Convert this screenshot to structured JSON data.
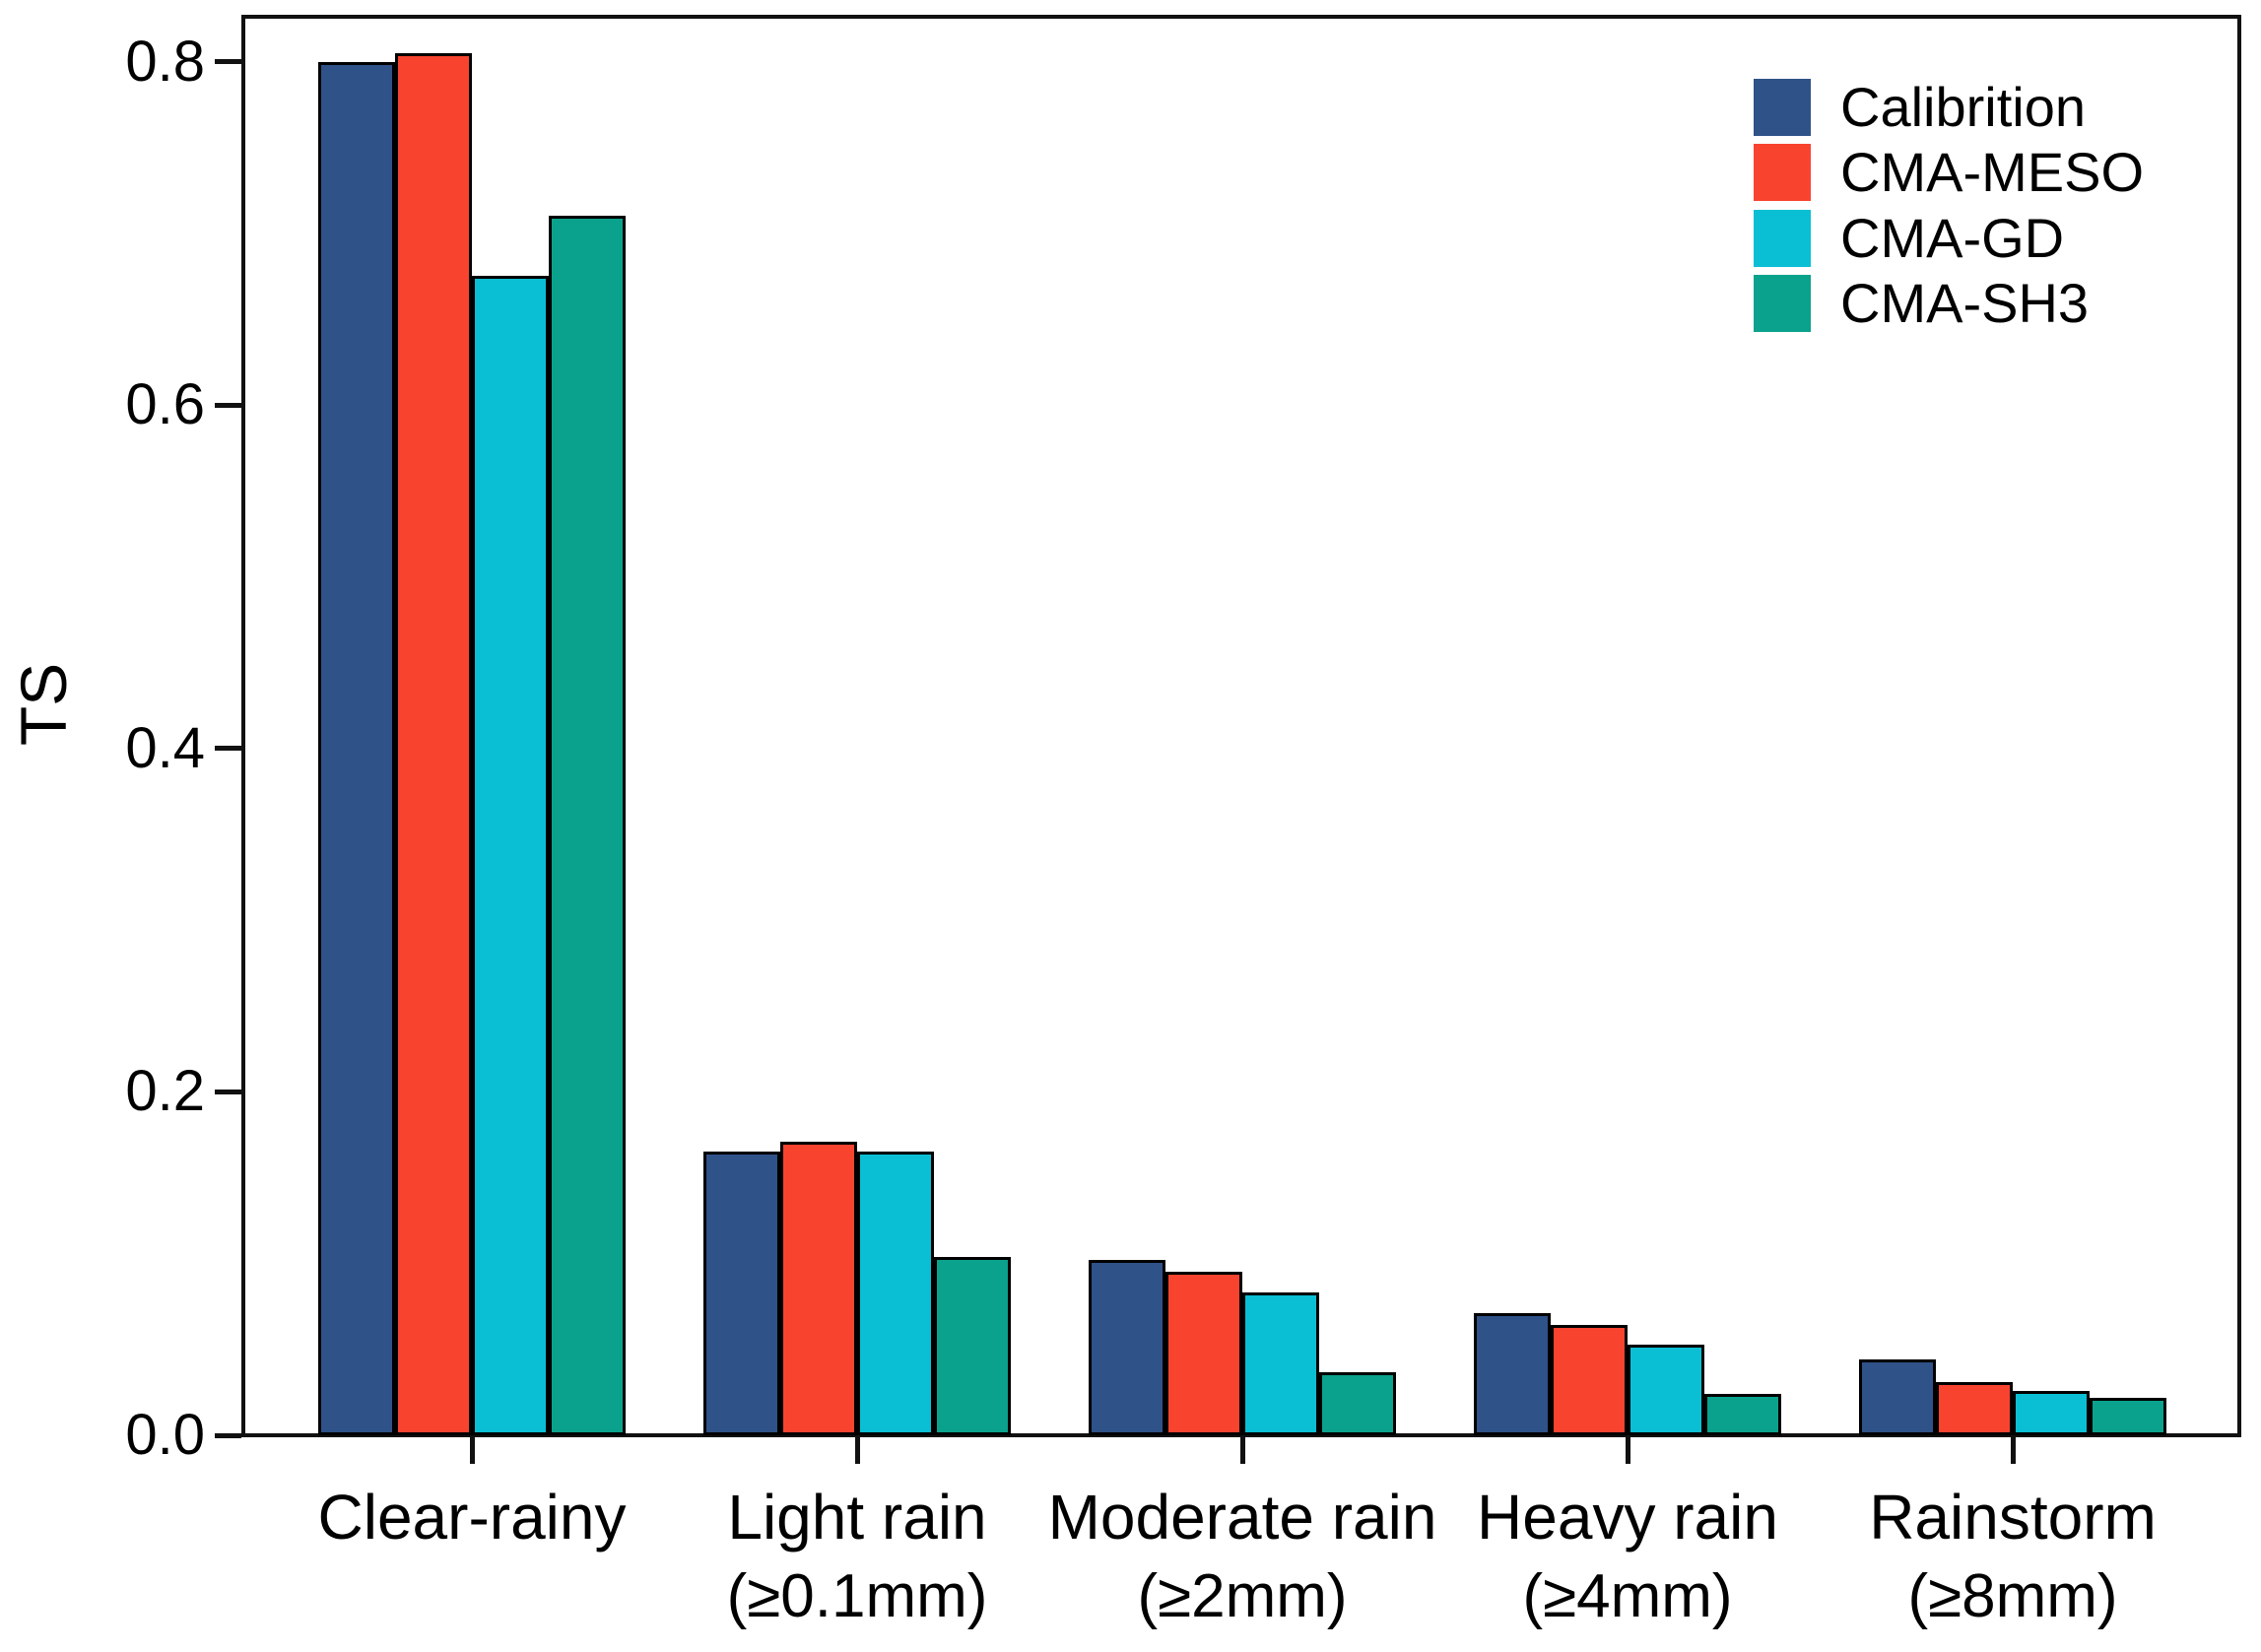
{
  "chart_data": {
    "type": "bar",
    "title": "",
    "xlabel": "",
    "ylabel": "TS",
    "ylim": [
      0,
      0.83
    ],
    "grid": false,
    "legend_position": "upper right",
    "bar_edge_color": "#000000",
    "yticks": [
      0.0,
      0.2,
      0.4,
      0.6,
      0.8
    ],
    "ytick_labels": [
      "0.0",
      "0.2",
      "0.4",
      "0.6",
      "0.8"
    ],
    "categories": [
      "Clear-rainy",
      "Light rain",
      "Moderate rain",
      "Heavy rain",
      "Rainstorm"
    ],
    "category_sublabels": [
      "",
      "(≥0.1mm)",
      "(≥2mm)",
      "(≥4mm)",
      "(≥8mm)"
    ],
    "series": [
      {
        "name": "Calibrition",
        "color": "#2F5288",
        "values": [
          0.8,
          0.165,
          0.102,
          0.071,
          0.044
        ]
      },
      {
        "name": "CMA-MESO",
        "color": "#F8432F",
        "values": [
          0.805,
          0.171,
          0.095,
          0.064,
          0.031
        ]
      },
      {
        "name": "CMA-GD",
        "color": "#0ABFD4",
        "values": [
          0.675,
          0.165,
          0.083,
          0.053,
          0.026
        ]
      },
      {
        "name": "CMA-SH3",
        "color": "#0AA28C",
        "values": [
          0.71,
          0.104,
          0.037,
          0.024,
          0.022
        ]
      }
    ]
  }
}
